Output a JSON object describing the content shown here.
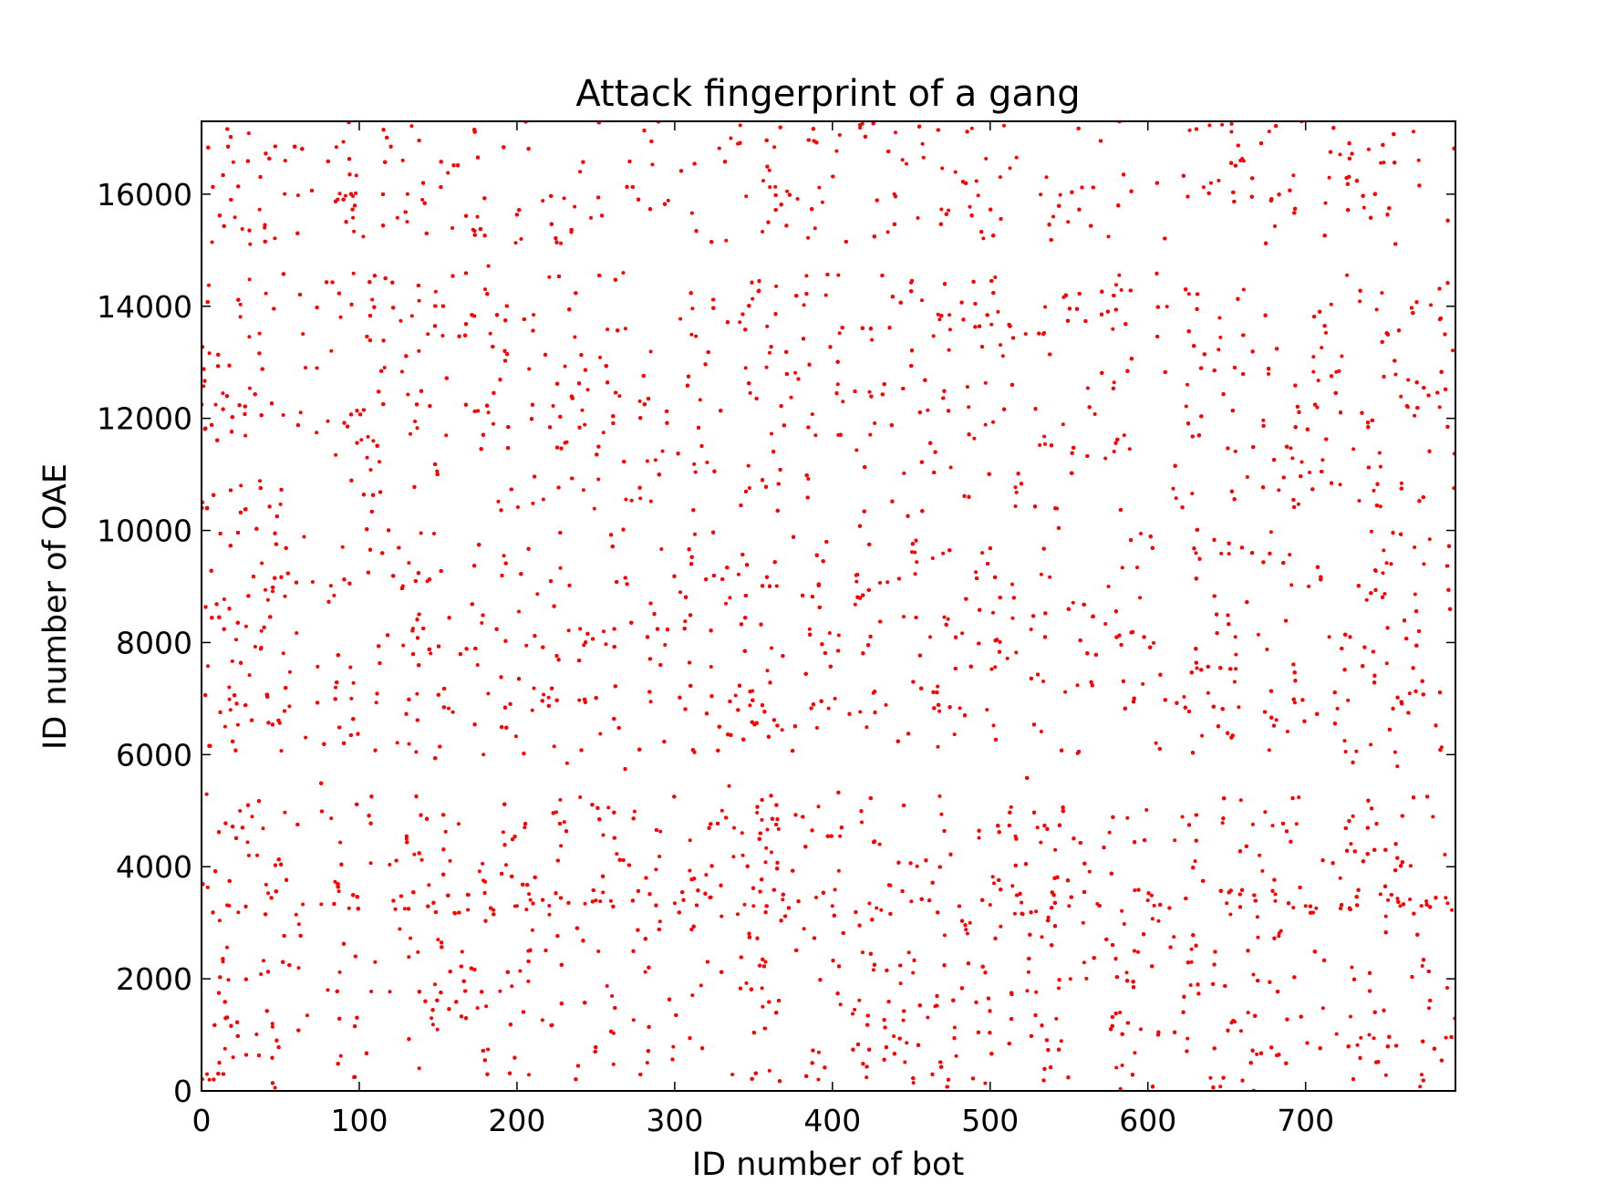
{
  "chart_data": {
    "type": "scatter",
    "title": "Attack fingerprint of a gang",
    "xlabel": "ID number of bot",
    "ylabel": "ID number of OAE",
    "xlim": [
      0,
      795
    ],
    "ylim": [
      0,
      17300
    ],
    "xticks": [
      0,
      100,
      200,
      300,
      400,
      500,
      600,
      700
    ],
    "yticks": [
      0,
      2000,
      4000,
      6000,
      8000,
      10000,
      12000,
      14000,
      16000
    ],
    "xtick_labels": [
      "0",
      "100",
      "200",
      "300",
      "400",
      "500",
      "600",
      "700"
    ],
    "ytick_labels": [
      "0",
      "2000",
      "4000",
      "6000",
      "8000",
      "10000",
      "12000",
      "14000",
      "16000"
    ],
    "marker_color": "#ff0000",
    "marker": "dot",
    "grid": false,
    "legend": "none",
    "series": [
      {
        "density_regions_description": "dense red scatter of (bot, OAE) attack pairs filling the plot",
        "blank_horizontal_bands_y": [
          [
            5300,
            6000
          ],
          [
            10050,
            10250
          ],
          [
            14600,
            15100
          ]
        ],
        "blank_vertical_bands_x": [
          [
            590,
            605,
            10050,
            17300
          ],
          [
            667,
            670,
            5900,
            17300
          ],
          [
            108,
            118,
            0,
            6000
          ]
        ],
        "dense_horizontal_band_y": [
          3100,
          3600
        ],
        "points": [
          [
            5,
            200
          ],
          [
            20,
            600
          ],
          [
            45,
            1200
          ],
          [
            80,
            1800
          ],
          [
            110,
            2300
          ],
          [
            150,
            2700
          ],
          [
            200,
            3300
          ],
          [
            250,
            3400
          ],
          [
            300,
            3350
          ],
          [
            350,
            3300
          ],
          [
            400,
            3300
          ],
          [
            450,
            3380
          ],
          [
            500,
            3320
          ],
          [
            550,
            3300
          ],
          [
            600,
            3400
          ],
          [
            650,
            3350
          ],
          [
            700,
            3300
          ],
          [
            760,
            3300
          ],
          [
            790,
            3350
          ],
          [
            30,
            4200
          ],
          [
            130,
            4500
          ],
          [
            230,
            4800
          ],
          [
            330,
            5000
          ],
          [
            430,
            4400
          ],
          [
            530,
            4700
          ],
          [
            630,
            4100
          ],
          [
            730,
            4900
          ],
          [
            15,
            6500
          ],
          [
            95,
            7000
          ],
          [
            175,
            7600
          ],
          [
            255,
            8200
          ],
          [
            335,
            8800
          ],
          [
            415,
            9200
          ],
          [
            495,
            9600
          ],
          [
            575,
            9000
          ],
          [
            595,
            8800
          ],
          [
            655,
            7300
          ],
          [
            715,
            8100
          ],
          [
            775,
            9400
          ],
          [
            25,
            10800
          ],
          [
            105,
            11300
          ],
          [
            185,
            11900
          ],
          [
            265,
            12400
          ],
          [
            345,
            12900
          ],
          [
            425,
            13400
          ],
          [
            505,
            13900
          ],
          [
            585,
            11700
          ],
          [
            625,
            12600
          ],
          [
            705,
            13100
          ],
          [
            785,
            12200
          ],
          [
            40,
            15400
          ],
          [
            140,
            15900
          ],
          [
            240,
            16400
          ],
          [
            340,
            16900
          ],
          [
            440,
            17100
          ],
          [
            540,
            15600
          ],
          [
            640,
            16200
          ],
          [
            740,
            16800
          ]
        ]
      }
    ]
  }
}
